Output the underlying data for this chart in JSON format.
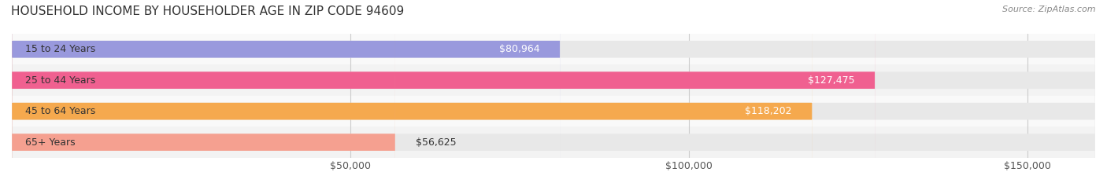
{
  "title": "HOUSEHOLD INCOME BY HOUSEHOLDER AGE IN ZIP CODE 94609",
  "source": "Source: ZipAtlas.com",
  "categories": [
    "15 to 24 Years",
    "25 to 44 Years",
    "45 to 64 Years",
    "65+ Years"
  ],
  "values": [
    80964,
    127475,
    118202,
    56625
  ],
  "bar_colors": [
    "#9999dd",
    "#f06090",
    "#f5a94e",
    "#f5a090"
  ],
  "bar_bg_color": "#eeeeee",
  "label_colors": [
    "#333333",
    "#ffffff",
    "#ffffff",
    "#333333"
  ],
  "xlim": [
    0,
    160000
  ],
  "xticks": [
    50000,
    100000,
    150000
  ],
  "xtick_labels": [
    "$50,000",
    "$100,000",
    "$150,000"
  ],
  "value_labels": [
    "$80,964",
    "$127,475",
    "$118,202",
    "$56,625"
  ],
  "title_fontsize": 11,
  "tick_fontsize": 9,
  "bar_label_fontsize": 9,
  "category_fontsize": 9,
  "background_color": "#ffffff",
  "bar_height": 0.55,
  "row_bg_colors": [
    "#f9f9f9",
    "#f3f3f3",
    "#f9f9f9",
    "#f3f3f3"
  ]
}
